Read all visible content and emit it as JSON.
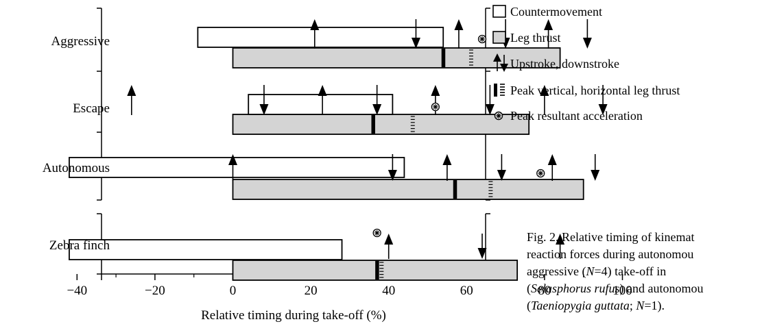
{
  "chart_data": {
    "type": "bar",
    "categories": [
      "Aggressive",
      "Escape",
      "Autonomous",
      "Zebra finch"
    ],
    "xlabel": "Relative timing during take-off (%)",
    "xlim": [
      -50,
      100
    ],
    "xticks": [
      -40,
      -20,
      0,
      20,
      40,
      60,
      80,
      100
    ],
    "rows": [
      {
        "category": "Aggressive",
        "countermovement": [
          -9,
          54
        ],
        "leg_thrust": [
          0,
          84
        ],
        "peak_vertical": 54,
        "peak_horizontal": 61,
        "peak_resultant_acceleration": 64,
        "upstrokes": [
          21,
          58,
          81
        ],
        "downstrokes": [
          47,
          70,
          91
        ]
      },
      {
        "category": "Escape",
        "countermovement": [
          4,
          41
        ],
        "leg_thrust": [
          0,
          76
        ],
        "peak_vertical": 36,
        "peak_horizontal": 46,
        "peak_resultant_acceleration": 52,
        "upstrokes": [
          -26,
          23,
          52,
          80
        ],
        "downstrokes": [
          8,
          37,
          66,
          95
        ]
      },
      {
        "category": "Autonomous",
        "countermovement": [
          -42,
          44
        ],
        "leg_thrust": [
          0,
          90
        ],
        "peak_vertical": 57,
        "peak_horizontal": 66,
        "peak_resultant_acceleration": 79,
        "upstrokes": [
          0,
          55,
          82
        ],
        "downstrokes": [
          41,
          69,
          93
        ]
      },
      {
        "category": "Zebra finch",
        "countermovement": [
          -42,
          28
        ],
        "leg_thrust": [
          0,
          73
        ],
        "peak_vertical": 37,
        "peak_horizontal": 38,
        "peak_resultant_acceleration": 37,
        "upstrokes": [
          40,
          84
        ],
        "downstrokes": [
          64
        ]
      }
    ]
  },
  "legend": {
    "countermovement": "Countermovement",
    "leg_thrust": "Leg thrust",
    "strokes": "Upstroke, downstroke",
    "peak_thrust": "Peak vertical, horizontal leg thrust",
    "peak_acceleration": "Peak resultant acceleration"
  },
  "colors": {
    "leg_thrust_fill": "#d4d4d4",
    "stroke": "#000000"
  },
  "caption": {
    "line1": "Fig. 2. Relative timing of kinemat",
    "line2": "reaction forces during autonomou",
    "line3": "aggressive  (N=4)  take-off  in",
    "line4": "(Selasphorus rufus) and autonomou",
    "line5": "(Taeniopygia guttata; N=1)."
  }
}
